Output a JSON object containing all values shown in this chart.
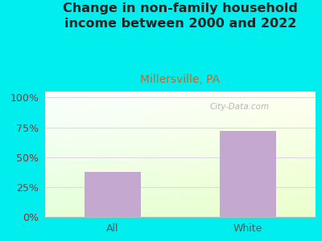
{
  "title": "Change in non-family household\nincome between 2000 and 2022",
  "subtitle": "Millersville, PA",
  "categories": [
    "All",
    "White"
  ],
  "values": [
    38,
    72
  ],
  "bar_color": "#C4A8D0",
  "bg_color": "#00EEEE",
  "yticks": [
    0,
    25,
    50,
    75,
    100
  ],
  "ytick_labels": [
    "0%",
    "25%",
    "50%",
    "75%",
    "100%"
  ],
  "ylabel_color": "#8B3030",
  "title_color": "#222222",
  "subtitle_color": "#CC6622",
  "title_fontsize": 11.5,
  "subtitle_fontsize": 10,
  "tick_fontsize": 9,
  "xtick_color": "#555555",
  "watermark": "City-Data.com",
  "watermark_color": "#AAAAAA",
  "grid_color": "#E0D8E8"
}
